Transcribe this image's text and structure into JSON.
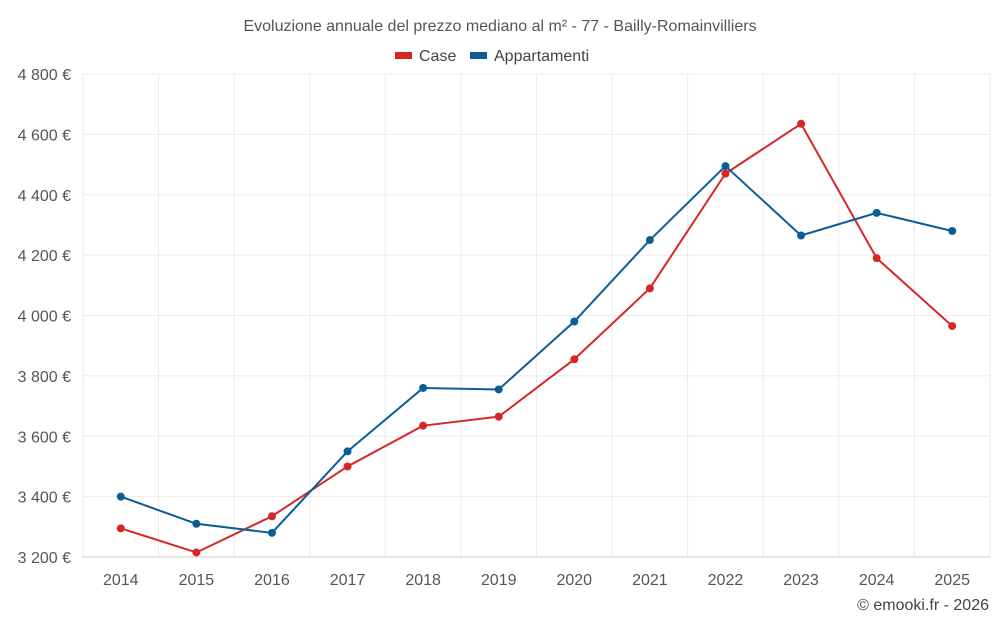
{
  "chart_data": {
    "type": "line",
    "title": "Evoluzione annuale del prezzo mediano al m² - 77 - Bailly-Romainvilliers",
    "categories": [
      "2014",
      "2015",
      "2016",
      "2017",
      "2018",
      "2019",
      "2020",
      "2021",
      "2022",
      "2023",
      "2024",
      "2025"
    ],
    "series": [
      {
        "name": "Case",
        "color": "#d62728",
        "values": [
          3295,
          3215,
          3335,
          3500,
          3635,
          3665,
          3855,
          4090,
          4470,
          4635,
          4190,
          3965
        ]
      },
      {
        "name": "Appartamenti",
        "color": "#0b5e95",
        "values": [
          3400,
          3310,
          3280,
          3550,
          3760,
          3755,
          3980,
          4250,
          4495,
          4265,
          4340,
          4280
        ]
      }
    ],
    "ylim": [
      3200,
      4800
    ],
    "yticks": [
      3200,
      3400,
      3600,
      3800,
      4000,
      4200,
      4400,
      4600,
      4800
    ],
    "ytick_labels": [
      "3 200 €",
      "3 400 €",
      "3 600 €",
      "3 800 €",
      "4 000 €",
      "4 200 €",
      "4 400 €",
      "4 600 €",
      "4 800 €"
    ],
    "legend_position": "top-center",
    "grid": true
  },
  "credit": "© emooki.fr - 2026"
}
